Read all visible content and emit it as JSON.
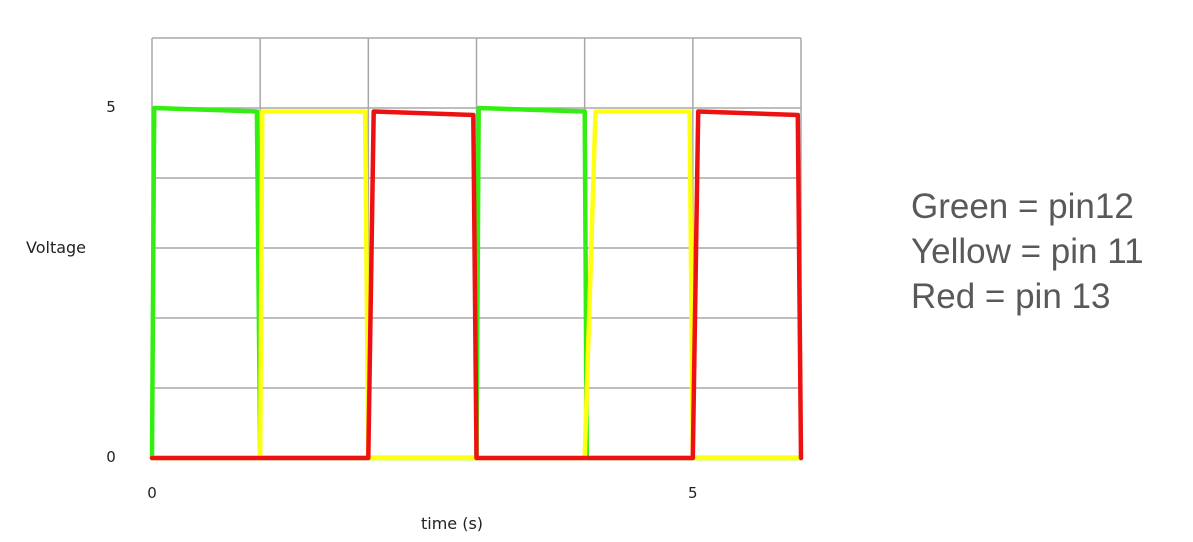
{
  "chart_data": {
    "type": "line",
    "title": "",
    "xlabel": "time (s)",
    "ylabel": "Voltage",
    "xlim": [
      0,
      6
    ],
    "ylim": [
      0,
      5
    ],
    "xticks": [
      {
        "value": 0,
        "label": "0"
      },
      {
        "value": 5,
        "label": "5"
      }
    ],
    "yticks": [
      {
        "value": 0,
        "label": "0"
      },
      {
        "value": 5,
        "label": "5"
      }
    ],
    "grid": true,
    "x_gridlines": [
      0,
      1,
      2,
      3,
      4,
      5,
      6
    ],
    "y_gridlines": [
      0,
      1,
      2,
      3,
      4,
      5
    ],
    "legend_position": "right",
    "series": [
      {
        "color": "#33ee11",
        "x": [
          0,
          0.02,
          0.97,
          1,
          3,
          3.02,
          4,
          4.02,
          4.97,
          5,
          6
        ],
        "y": [
          0,
          5,
          4.95,
          0,
          0,
          5,
          4.95,
          0,
          0,
          0,
          0
        ]
      },
      {
        "color": "#ffff11",
        "x": [
          0,
          1,
          1.02,
          1.97,
          2,
          4,
          4.1,
          4.97,
          5,
          6
        ],
        "y": [
          0,
          0,
          4.95,
          4.95,
          0,
          0,
          4.95,
          4.95,
          0,
          0
        ]
      },
      {
        "color": "#ee1111",
        "x": [
          0,
          2,
          2.05,
          2.97,
          3,
          5,
          5.05,
          5.97,
          6
        ],
        "y": [
          0,
          0,
          4.95,
          4.9,
          0,
          0,
          4.95,
          4.9,
          0
        ]
      }
    ]
  },
  "legend": {
    "items": [
      {
        "label": "Green = pin12"
      },
      {
        "label": "Yellow = pin 11"
      },
      {
        "label": "Red = pin 13"
      }
    ]
  }
}
